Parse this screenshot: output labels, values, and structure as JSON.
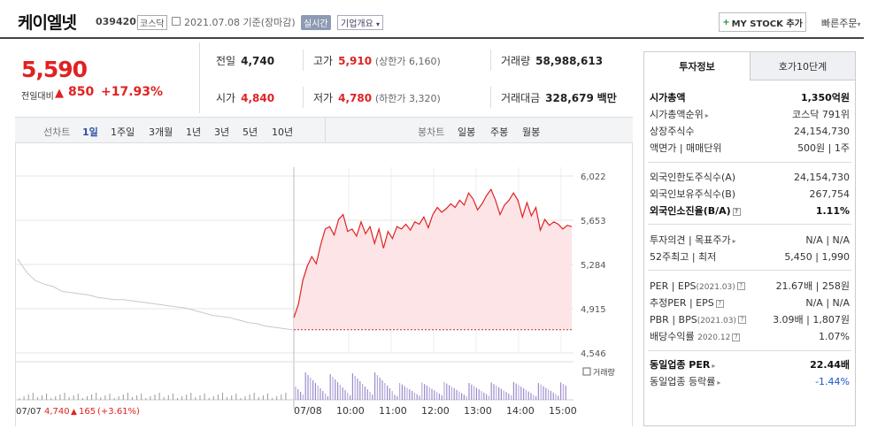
{
  "header": {
    "name": "케이엘넷",
    "code": "039420",
    "market": "코스닥",
    "date": "2021.07.08  기준(장마감)",
    "realtime": "실시간",
    "company_info": "기업개요",
    "mystock": "MY STOCK 추가",
    "quick_order": "빠른주문"
  },
  "price": {
    "current": "5,590",
    "change_label": "전일대비",
    "change": "850",
    "change_pct": "+17.93%"
  },
  "info": {
    "prev_label": "전일",
    "prev": "4,740",
    "high_label": "고가",
    "high": "5,910",
    "upper_limit": "(상한가 6,160)",
    "volume_label": "거래량",
    "volume": "58,988,613",
    "open_label": "시가",
    "open": "4,840",
    "low_label": "저가",
    "low": "4,780",
    "lower_limit": "(하한가 3,320)",
    "amount_label": "거래대금",
    "amount": "328,679",
    "amount_unit": "백만"
  },
  "periodbar": {
    "line_label": "선차트",
    "periods": [
      "1일",
      "1주일",
      "3개월",
      "1년",
      "3년",
      "5년",
      "10년"
    ],
    "candle_label": "봉차트",
    "candles": [
      "일봉",
      "주봉",
      "월봉"
    ]
  },
  "chart_data": {
    "type": "line",
    "y_ticks": [
      "6,022",
      "5,653",
      "5,284",
      "4,915",
      "4,546"
    ],
    "ylim": [
      4546,
      6022
    ],
    "x_ticks": [
      "07/08",
      "10:00",
      "11:00",
      "12:00",
      "13:00",
      "14:00",
      "15:00"
    ],
    "prev_day_label": "07/07",
    "volume_label": "거래량",
    "prev_day_summary": {
      "close": "4,740",
      "change": "165",
      "pct": "(+3.61%)"
    },
    "prev_day_series": [
      5330,
      5220,
      5150,
      5120,
      5100,
      5060,
      5050,
      5040,
      5030,
      5010,
      5000,
      4990,
      4990,
      4980,
      4970,
      4960,
      4950,
      4940,
      4930,
      4920,
      4900,
      4880,
      4860,
      4850,
      4840,
      4820,
      4800,
      4790,
      4770,
      4760,
      4750,
      4740
    ],
    "today_series": [
      4840,
      4950,
      5150,
      5270,
      5350,
      5290,
      5450,
      5580,
      5600,
      5530,
      5660,
      5700,
      5560,
      5580,
      5520,
      5640,
      5540,
      5600,
      5460,
      5580,
      5420,
      5560,
      5500,
      5600,
      5580,
      5620,
      5570,
      5640,
      5620,
      5680,
      5590,
      5700,
      5760,
      5720,
      5750,
      5790,
      5760,
      5820,
      5780,
      5880,
      5830,
      5740,
      5790,
      5860,
      5910,
      5820,
      5700,
      5780,
      5820,
      5880,
      5820,
      5680,
      5800,
      5690,
      5760,
      5570,
      5660,
      5610,
      5640,
      5620,
      5580,
      5610,
      5600
    ],
    "prev_close_line": 4740,
    "color_up": "#e02222",
    "fill": "#fde4e6"
  },
  "panel": {
    "tab_invest": "투자정보",
    "tab_hoga": "호가10단계",
    "market_cap_label": "시가총액",
    "market_cap": "1,350억원",
    "cap_rank_label": "시가총액순위",
    "cap_rank": "코스닥 791위",
    "shares_label": "상장주식수",
    "shares": "24,154,730",
    "par_label": "액면가 | 매매단위",
    "par": "500원 | 1주",
    "foreign_limit_label": "외국인한도주식수(A)",
    "foreign_limit": "24,154,730",
    "foreign_hold_label": "외국인보유주식수(B)",
    "foreign_hold": "267,754",
    "foreign_ratio_label": "외국인소진율(B/A)",
    "foreign_ratio": "1.11%",
    "opinion_label": "투자의견 | 목표주가",
    "opinion": "N/A | N/A",
    "w52_label": "52주최고 | 최저",
    "w52": "5,450 | 1,990",
    "per_label": "PER | EPS",
    "per_date": "(2021.03)",
    "per": "21.67배 | 258원",
    "est_label": "추정PER | EPS",
    "est": "N/A | N/A",
    "pbr_label": "PBR | BPS",
    "pbr_date": "(2021.03)",
    "pbr": "3.09배 | 1,807원",
    "div_label": "배당수익률",
    "div_date": "2020.12",
    "div": "1.07%",
    "sector_per_label": "동일업종 PER",
    "sector_per": "22.44배",
    "sector_rate_label": "동일업종 등락률",
    "sector_rate": "-1.44%"
  }
}
